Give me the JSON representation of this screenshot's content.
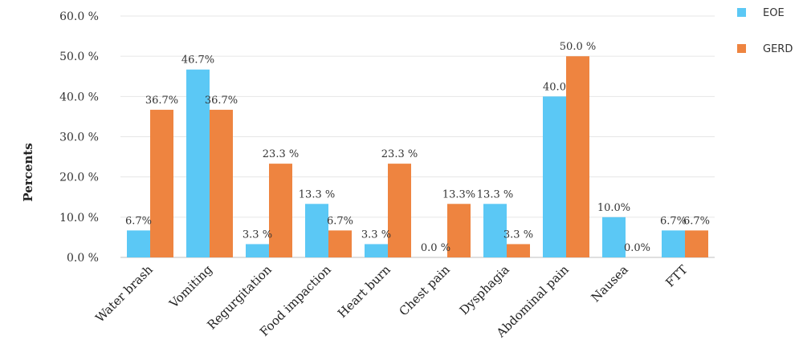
{
  "chart_data": {
    "type": "bar",
    "ylabel": "Percents",
    "ylim": [
      0,
      60
    ],
    "yticks": [
      0,
      10,
      20,
      30,
      40,
      50,
      60
    ],
    "ytick_labels": [
      "0.0 %",
      "10.0 %",
      "20.0 %",
      "30.0 %",
      "40.0 %",
      "50.0 %",
      "60.0 %"
    ],
    "grid": true,
    "legend_position": "top-right",
    "categories": [
      "Water brash",
      "Vomiting",
      "Regurgitation",
      "Food impaction",
      "Heart burn",
      "Chest pain",
      "Dysphagia",
      "Abdominal pain",
      "Nausea",
      "FTT"
    ],
    "series": [
      {
        "name": "EOE",
        "color": "#5bc8f5",
        "values": [
          6.7,
          46.7,
          3.3,
          13.3,
          3.3,
          0.0,
          13.3,
          40.0,
          10.0,
          6.7
        ],
        "labels": [
          "6.7%",
          "46.7%",
          "3.3 %",
          "13.3 %",
          "3.3 %",
          "0.0 %",
          "13.3 %",
          "40.0",
          "10.0%",
          "6.7%"
        ]
      },
      {
        "name": "GERD",
        "color": "#ee8440",
        "values": [
          36.7,
          36.7,
          23.3,
          6.7,
          23.3,
          13.3,
          3.3,
          50.0,
          0.0,
          6.7
        ],
        "labels": [
          "36.7%",
          "36.7%",
          "23.3 %",
          "6.7%",
          "23.3 %",
          "13.3%",
          "3.3 %",
          "50.0 %",
          "0.0%",
          "6.7%"
        ]
      }
    ]
  }
}
